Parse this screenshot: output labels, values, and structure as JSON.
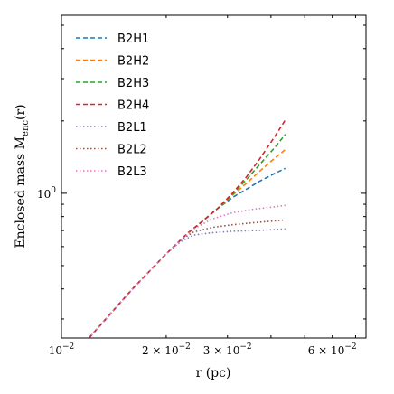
{
  "chart_data": {
    "type": "line",
    "xlabel": "r (pc)",
    "ylabel": "Enclosed mass M",
    "ylabel_sub": "enc",
    "ylabel_arg": "(r)",
    "xscale": "log",
    "yscale": "log",
    "xlim": [
      0.01,
      0.075
    ],
    "ylim": [
      0.25,
      5.5
    ],
    "x_major_ticks": [
      {
        "value": 0.01,
        "mant": "10",
        "exp": "−2"
      }
    ],
    "x_minor_labeled_ticks": [
      {
        "value": 0.02,
        "mant": "2 × 10",
        "exp": "−2"
      },
      {
        "value": 0.03,
        "mant": "3 × 10",
        "exp": "−2"
      },
      {
        "value": 0.06,
        "mant": "6 × 10",
        "exp": "−2"
      }
    ],
    "y_major_ticks": [
      {
        "value": 1.0,
        "mant": "10",
        "exp": "0"
      }
    ],
    "legend_position": "upper-left",
    "grid": false,
    "series": [
      {
        "name": "B2H1",
        "style": "dashed",
        "color": "#1f77b4",
        "x": [
          0.012,
          0.016,
          0.02,
          0.023,
          0.025,
          0.028,
          0.031,
          0.034,
          0.037,
          0.041,
          0.044
        ],
        "y": [
          0.25,
          0.4,
          0.56,
          0.68,
          0.75,
          0.86,
          0.96,
          1.04,
          1.12,
          1.21,
          1.27
        ]
      },
      {
        "name": "B2H2",
        "style": "dashed",
        "color": "#ff7f0e",
        "x": [
          0.012,
          0.016,
          0.02,
          0.023,
          0.025,
          0.028,
          0.031,
          0.034,
          0.037,
          0.041,
          0.044
        ],
        "y": [
          0.25,
          0.4,
          0.56,
          0.68,
          0.75,
          0.86,
          0.98,
          1.1,
          1.23,
          1.4,
          1.52
        ]
      },
      {
        "name": "B2H3",
        "style": "dashed",
        "color": "#2ca02c",
        "x": [
          0.012,
          0.016,
          0.02,
          0.023,
          0.025,
          0.028,
          0.031,
          0.034,
          0.037,
          0.041,
          0.044
        ],
        "y": [
          0.25,
          0.4,
          0.56,
          0.68,
          0.75,
          0.86,
          0.99,
          1.14,
          1.31,
          1.55,
          1.76
        ]
      },
      {
        "name": "B2H4",
        "style": "dashed",
        "color": "#d62728",
        "x": [
          0.012,
          0.016,
          0.02,
          0.023,
          0.025,
          0.028,
          0.031,
          0.034,
          0.037,
          0.041,
          0.044
        ],
        "y": [
          0.25,
          0.4,
          0.56,
          0.68,
          0.75,
          0.86,
          1.0,
          1.17,
          1.38,
          1.72,
          2.02
        ]
      },
      {
        "name": "B2L1",
        "style": "dotted",
        "color": "#7f7fbf",
        "x": [
          0.012,
          0.016,
          0.02,
          0.022,
          0.024,
          0.027,
          0.031,
          0.036,
          0.04,
          0.044
        ],
        "y": [
          0.25,
          0.4,
          0.56,
          0.63,
          0.67,
          0.685,
          0.695,
          0.7,
          0.705,
          0.71
        ]
      },
      {
        "name": "B2L2",
        "style": "dotted",
        "color": "#8c564b",
        "x": [
          0.012,
          0.016,
          0.02,
          0.022,
          0.024,
          0.027,
          0.031,
          0.036,
          0.04,
          0.044
        ],
        "y": [
          0.25,
          0.4,
          0.56,
          0.64,
          0.69,
          0.72,
          0.74,
          0.755,
          0.765,
          0.775
        ]
      },
      {
        "name": "B2L3",
        "style": "dotted",
        "color": "#e377c2",
        "x": [
          0.012,
          0.016,
          0.02,
          0.022,
          0.024,
          0.027,
          0.031,
          0.036,
          0.04,
          0.044
        ],
        "y": [
          0.25,
          0.4,
          0.56,
          0.64,
          0.71,
          0.78,
          0.83,
          0.86,
          0.875,
          0.89
        ]
      }
    ]
  }
}
